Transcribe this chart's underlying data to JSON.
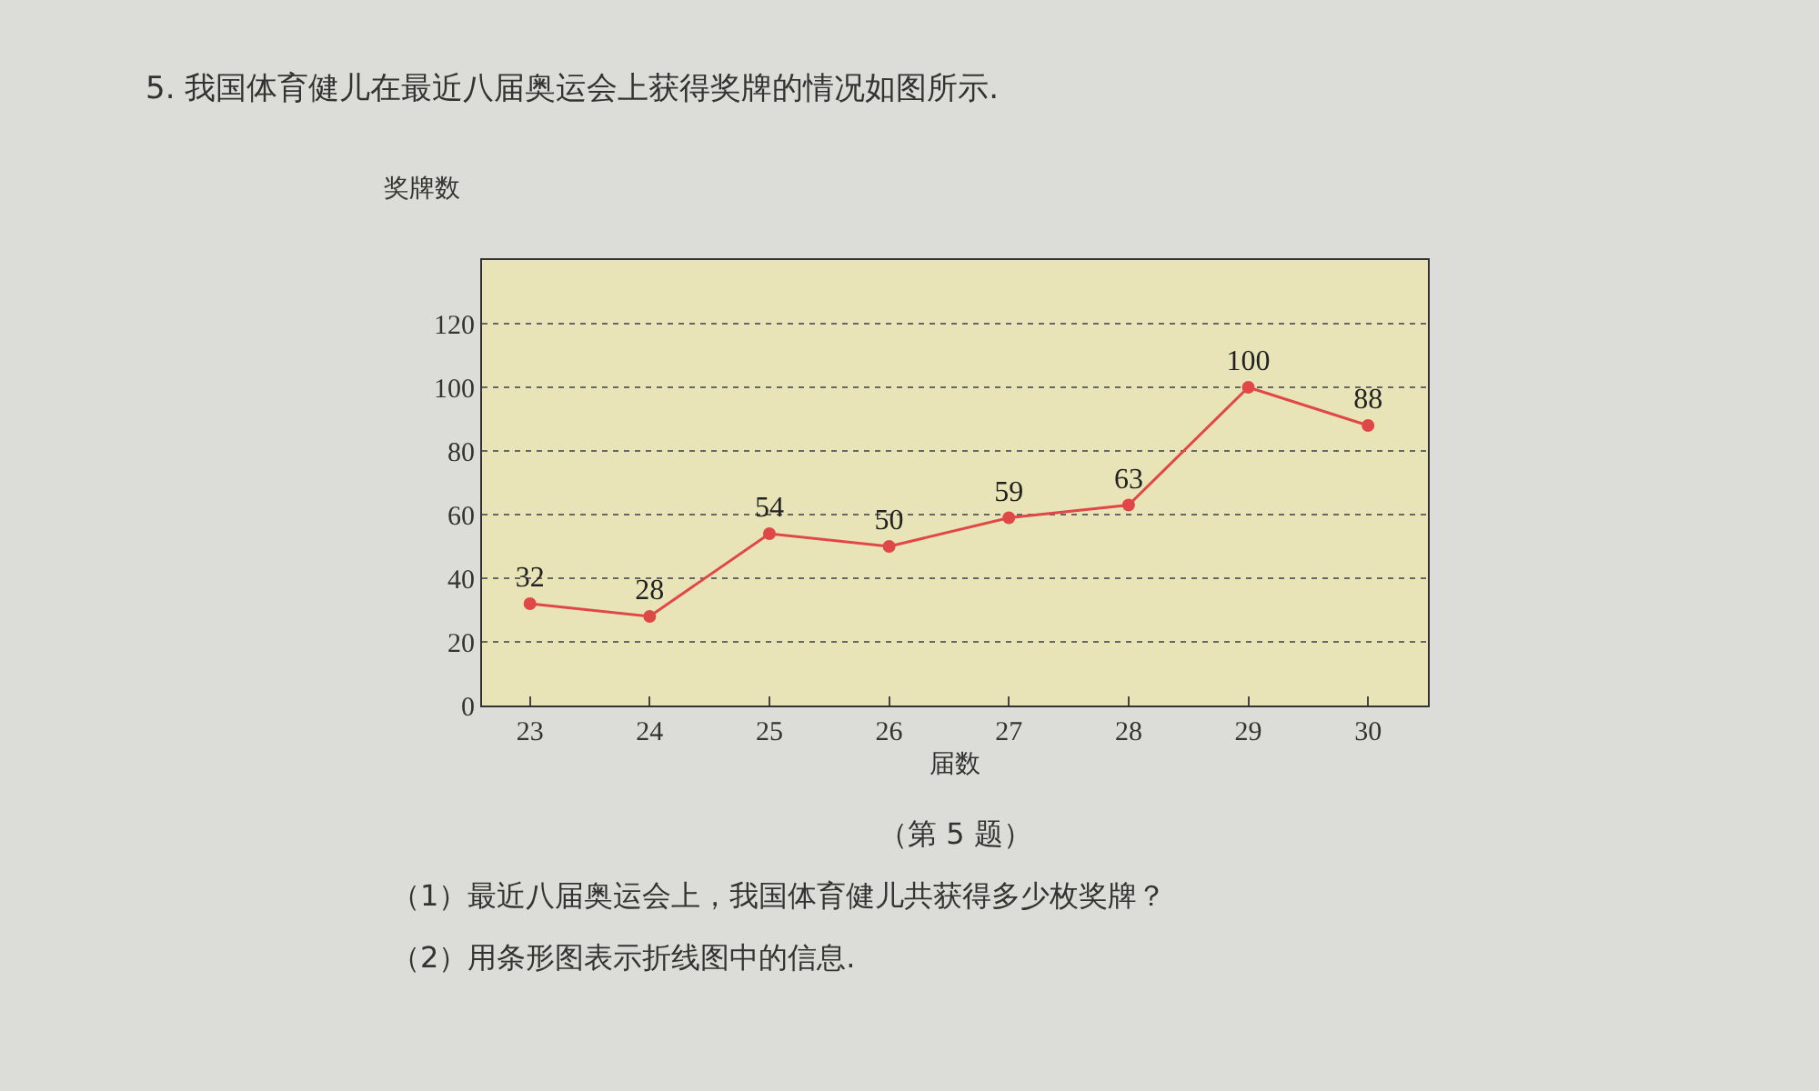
{
  "chart_data": {
    "type": "line",
    "title": "5. 我国体育健儿在最近八届奥运会上获得奖牌的情况如图所示.",
    "xlabel": "届数",
    "ylabel": "奖牌数",
    "categories": [
      "23",
      "24",
      "25",
      "26",
      "27",
      "28",
      "29",
      "30"
    ],
    "series": [
      {
        "color": "#e04848",
        "values": [
          32,
          28,
          54,
          50,
          59,
          63,
          100,
          88
        ]
      }
    ],
    "ylim": [
      0,
      140
    ],
    "yticks": [
      0,
      20,
      40,
      60,
      80,
      100,
      120
    ],
    "grid": "y",
    "marker": "circle",
    "line_style": "solid",
    "data_labels": true,
    "annotations": [
      "（第 5 题）",
      "（1）最近八届奥运会上，我国体育健儿共获得多少枚奖牌？",
      "（2）用条形图表示折线图中的信息."
    ]
  }
}
